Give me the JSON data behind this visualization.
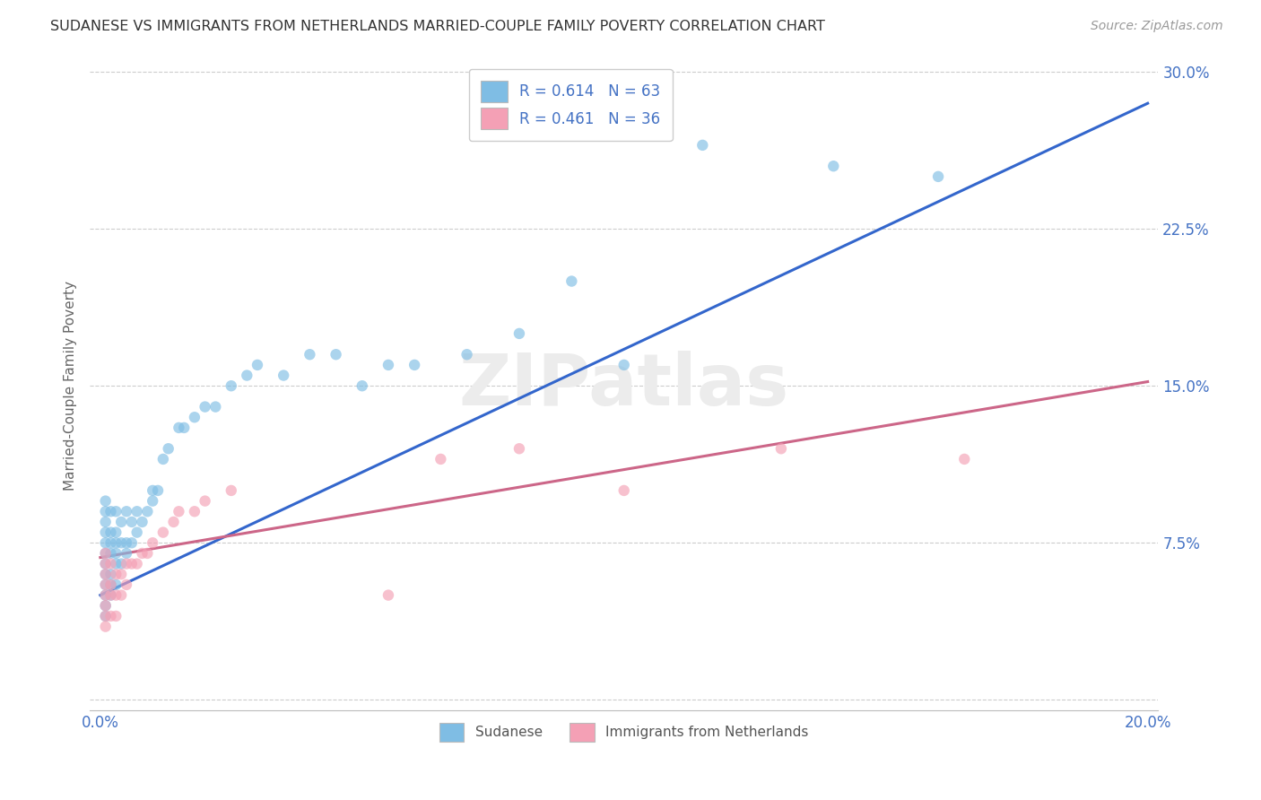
{
  "title": "SUDANESE VS IMMIGRANTS FROM NETHERLANDS MARRIED-COUPLE FAMILY POVERTY CORRELATION CHART",
  "source": "Source: ZipAtlas.com",
  "ylabel": "Married-Couple Family Poverty",
  "xlabel": "",
  "xlim": [
    -0.002,
    0.202
  ],
  "ylim": [
    -0.005,
    0.305
  ],
  "xticks": [
    0.0,
    0.2
  ],
  "xticklabels": [
    "0.0%",
    "20.0%"
  ],
  "yticks": [
    0.075,
    0.15,
    0.225,
    0.3
  ],
  "yticklabels": [
    "7.5%",
    "15.0%",
    "22.5%",
    "30.0%"
  ],
  "blue_R": 0.614,
  "blue_N": 63,
  "pink_R": 0.461,
  "pink_N": 36,
  "blue_color": "#7fbde4",
  "pink_color": "#f4a0b5",
  "blue_line_color": "#3366cc",
  "pink_line_color": "#cc6688",
  "legend_label_blue": "Sudanese",
  "legend_label_pink": "Immigrants from Netherlands",
  "blue_line_x0": 0.0,
  "blue_line_y0": 0.05,
  "blue_line_x1": 0.2,
  "blue_line_y1": 0.285,
  "pink_line_x0": 0.0,
  "pink_line_x1": 0.2,
  "pink_line_y0": 0.068,
  "pink_line_y1": 0.152,
  "blue_scatter_x": [
    0.001,
    0.001,
    0.001,
    0.001,
    0.001,
    0.001,
    0.001,
    0.001,
    0.001,
    0.001,
    0.001,
    0.001,
    0.002,
    0.002,
    0.002,
    0.002,
    0.002,
    0.002,
    0.002,
    0.003,
    0.003,
    0.003,
    0.003,
    0.003,
    0.003,
    0.004,
    0.004,
    0.004,
    0.005,
    0.005,
    0.005,
    0.006,
    0.006,
    0.007,
    0.007,
    0.008,
    0.009,
    0.01,
    0.01,
    0.011,
    0.012,
    0.013,
    0.015,
    0.016,
    0.018,
    0.02,
    0.022,
    0.025,
    0.028,
    0.03,
    0.035,
    0.04,
    0.045,
    0.05,
    0.055,
    0.06,
    0.07,
    0.08,
    0.09,
    0.1,
    0.115,
    0.14,
    0.16
  ],
  "blue_scatter_y": [
    0.04,
    0.045,
    0.05,
    0.055,
    0.06,
    0.065,
    0.07,
    0.075,
    0.08,
    0.085,
    0.09,
    0.095,
    0.05,
    0.055,
    0.06,
    0.07,
    0.075,
    0.08,
    0.09,
    0.055,
    0.065,
    0.07,
    0.075,
    0.08,
    0.09,
    0.065,
    0.075,
    0.085,
    0.07,
    0.075,
    0.09,
    0.075,
    0.085,
    0.08,
    0.09,
    0.085,
    0.09,
    0.095,
    0.1,
    0.1,
    0.115,
    0.12,
    0.13,
    0.13,
    0.135,
    0.14,
    0.14,
    0.15,
    0.155,
    0.16,
    0.155,
    0.165,
    0.165,
    0.15,
    0.16,
    0.16,
    0.165,
    0.175,
    0.2,
    0.16,
    0.265,
    0.255,
    0.25
  ],
  "pink_scatter_x": [
    0.001,
    0.001,
    0.001,
    0.001,
    0.001,
    0.001,
    0.001,
    0.001,
    0.002,
    0.002,
    0.002,
    0.002,
    0.003,
    0.003,
    0.003,
    0.004,
    0.004,
    0.005,
    0.005,
    0.006,
    0.007,
    0.008,
    0.009,
    0.01,
    0.012,
    0.014,
    0.015,
    0.018,
    0.02,
    0.025,
    0.055,
    0.065,
    0.08,
    0.1,
    0.13,
    0.165
  ],
  "pink_scatter_y": [
    0.035,
    0.04,
    0.045,
    0.05,
    0.055,
    0.06,
    0.065,
    0.07,
    0.04,
    0.05,
    0.055,
    0.065,
    0.04,
    0.05,
    0.06,
    0.05,
    0.06,
    0.055,
    0.065,
    0.065,
    0.065,
    0.07,
    0.07,
    0.075,
    0.08,
    0.085,
    0.09,
    0.09,
    0.095,
    0.1,
    0.05,
    0.115,
    0.12,
    0.1,
    0.12,
    0.115
  ]
}
